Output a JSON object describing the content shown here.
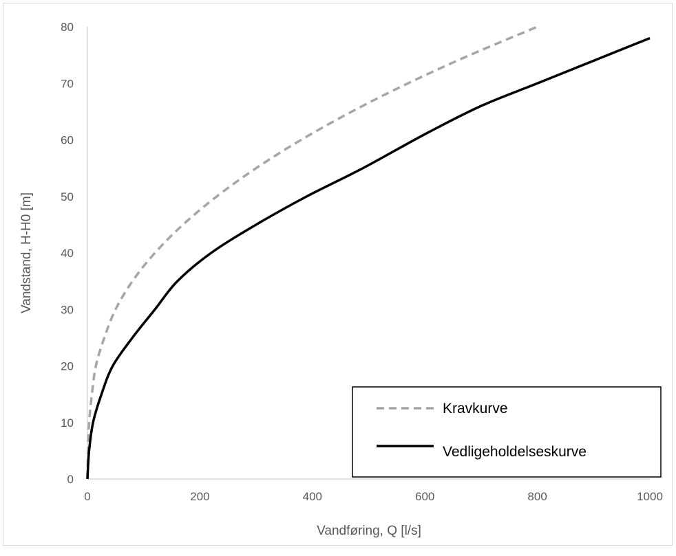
{
  "chart_data": {
    "type": "line",
    "title": "",
    "xlabel": "Vandføring, Q [l/s]",
    "ylabel": "Vandstand, H-H0 [m]",
    "xlim": [
      0,
      1000
    ],
    "ylim": [
      0,
      80
    ],
    "x_ticks": [
      0,
      200,
      400,
      600,
      800,
      1000
    ],
    "y_ticks": [
      0,
      10,
      20,
      30,
      40,
      50,
      60,
      70,
      80
    ],
    "grid": false,
    "legend_placement": "bottom-right",
    "series": [
      {
        "name": "Kravkurve",
        "color": "#a6a6a6",
        "style": "dashed",
        "points": [
          [
            0,
            0
          ],
          [
            1,
            5
          ],
          [
            3,
            10
          ],
          [
            8,
            15
          ],
          [
            15,
            20
          ],
          [
            30,
            25
          ],
          [
            50,
            30
          ],
          [
            80,
            35
          ],
          [
            120,
            40
          ],
          [
            170,
            45
          ],
          [
            230,
            50
          ],
          [
            300,
            55
          ],
          [
            380,
            60
          ],
          [
            470,
            65
          ],
          [
            570,
            70
          ],
          [
            680,
            75
          ],
          [
            800,
            80
          ]
        ]
      },
      {
        "name": "Vedligeholdelseskurve",
        "color": "#000000",
        "style": "solid",
        "points": [
          [
            0,
            0
          ],
          [
            3,
            5
          ],
          [
            10,
            10
          ],
          [
            25,
            15
          ],
          [
            45,
            20
          ],
          [
            80,
            25
          ],
          [
            120,
            30
          ],
          [
            160,
            35
          ],
          [
            220,
            40
          ],
          [
            300,
            45
          ],
          [
            390,
            50
          ],
          [
            490,
            55
          ],
          [
            600,
            61
          ],
          [
            700,
            66
          ],
          [
            800,
            70
          ],
          [
            900,
            74
          ],
          [
            1000,
            78
          ]
        ]
      }
    ]
  }
}
